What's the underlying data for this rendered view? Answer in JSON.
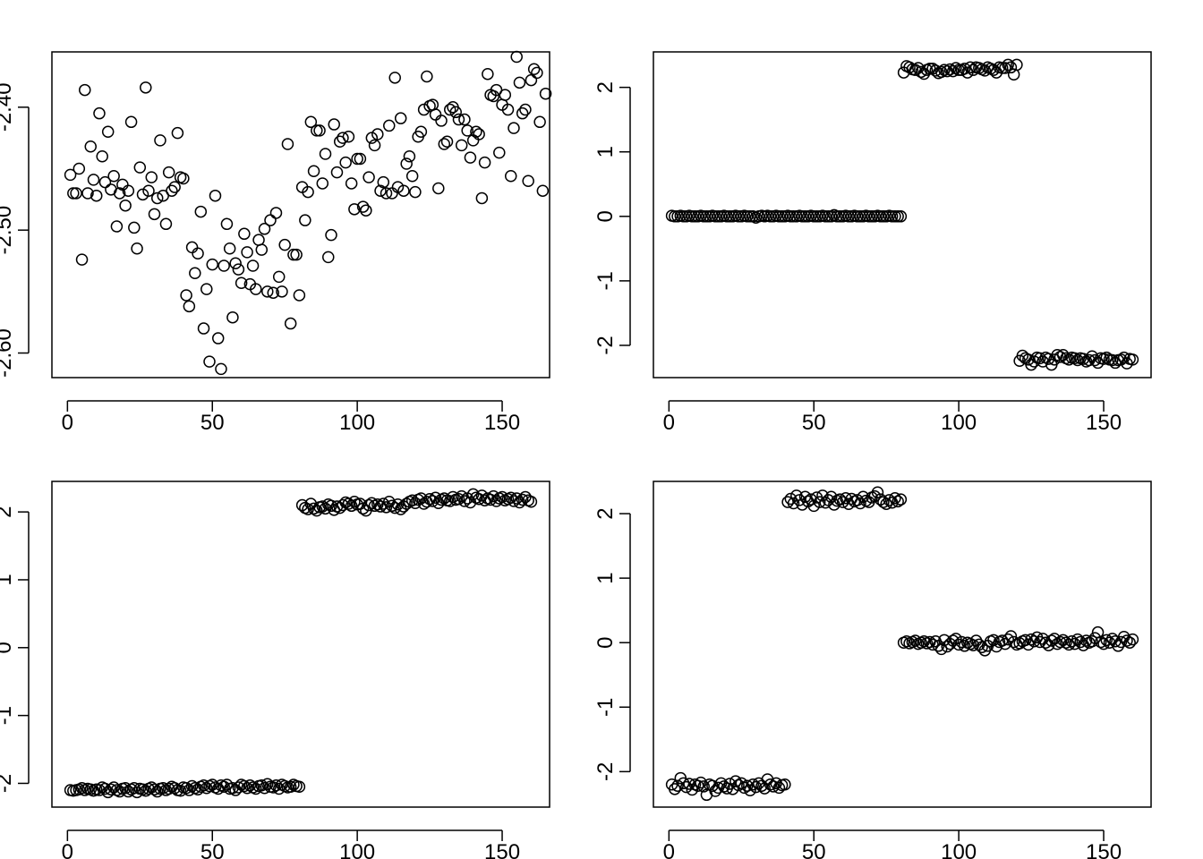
{
  "chart_data": [
    {
      "type": "scatter",
      "panel": "top-left",
      "title": "",
      "xlabel": "",
      "ylabel": "",
      "xlim": [
        1,
        160
      ],
      "ylim": [
        -2.62,
        -2.355
      ],
      "xticks": [
        0,
        50,
        100,
        150
      ],
      "xtick_labels": [
        "0",
        "50",
        "100",
        "150"
      ],
      "yticks": [
        -2.6,
        -2.5,
        -2.4
      ],
      "ytick_labels": [
        "-2.60",
        "-2.50",
        "-2.40"
      ],
      "x_start": 1,
      "y": [
        -2.455,
        -2.47,
        -2.47,
        -2.45,
        -2.524,
        -2.386,
        -2.47,
        -2.432,
        -2.459,
        -2.472,
        -2.405,
        -2.44,
        -2.461,
        -2.42,
        -2.467,
        -2.456,
        -2.497,
        -2.47,
        -2.463,
        -2.48,
        -2.468,
        -2.412,
        -2.498,
        -2.515,
        -2.449,
        -2.471,
        -2.384,
        -2.468,
        -2.457,
        -2.487,
        -2.474,
        -2.427,
        -2.472,
        -2.495,
        -2.453,
        -2.468,
        -2.465,
        -2.421,
        -2.457,
        -2.458,
        -2.553,
        -2.562,
        -2.514,
        -2.535,
        -2.519,
        -2.485,
        -2.58,
        -2.548,
        -2.607,
        -2.528,
        -2.472,
        -2.588,
        -2.613,
        -2.529,
        -2.495,
        -2.515,
        -2.571,
        -2.527,
        -2.532,
        -2.543,
        -2.503,
        -2.518,
        -2.544,
        -2.529,
        -2.548,
        -2.508,
        -2.516,
        -2.499,
        -2.55,
        -2.492,
        -2.551,
        -2.486,
        -2.538,
        -2.55,
        -2.512,
        -2.43,
        -2.576,
        -2.52,
        -2.52,
        -2.553,
        -2.465,
        -2.492,
        -2.469,
        -2.412,
        -2.452,
        -2.419,
        -2.419,
        -2.462,
        -2.438,
        -2.522,
        -2.504,
        -2.414,
        -2.453,
        -2.428,
        -2.425,
        -2.445,
        -2.424,
        -2.462,
        -2.483,
        -2.442,
        -2.442,
        -2.481,
        -2.484,
        -2.457,
        -2.425,
        -2.431,
        -2.422,
        -2.468,
        -2.461,
        -2.47,
        -2.415,
        -2.47,
        -2.376,
        -2.465,
        -2.409,
        -2.468,
        -2.446,
        -2.44,
        -2.456,
        -2.469,
        -2.424,
        -2.42,
        -2.402,
        -2.375,
        -2.399,
        -2.398,
        -2.406,
        -2.466,
        -2.411,
        -2.43,
        -2.428,
        -2.402,
        -2.4,
        -2.404,
        -2.41,
        -2.431,
        -2.41,
        -2.419,
        -2.441,
        -2.427,
        -2.42,
        -2.422,
        -2.474,
        -2.445,
        -2.373,
        -2.39,
        -2.391,
        -2.386,
        -2.437,
        -2.398,
        -2.39,
        -2.402,
        -2.456,
        -2.417,
        -2.359,
        -2.38,
        -2.405,
        -2.402,
        -2.46,
        -2.378,
        -2.369,
        -2.372,
        -2.412,
        -2.468,
        -2.389
      ]
    },
    {
      "type": "scatter",
      "panel": "top-right",
      "title": "",
      "xlabel": "",
      "ylabel": "",
      "xlim": [
        1,
        160
      ],
      "ylim": [
        -2.5,
        2.55
      ],
      "xticks": [
        0,
        50,
        100,
        150
      ],
      "xtick_labels": [
        "0",
        "50",
        "100",
        "150"
      ],
      "yticks": [
        -2,
        -1,
        0,
        1,
        2
      ],
      "ytick_labels": [
        "-2",
        "-1",
        "0",
        "1",
        "2"
      ],
      "x_start": 1,
      "y": [
        0.01,
        0.0,
        0.0,
        0.01,
        0.0,
        0.0,
        0.01,
        0.0,
        0.0,
        0.0,
        0.01,
        0.0,
        0.0,
        0.0,
        0.01,
        0.0,
        0.0,
        0.0,
        0.01,
        0.0,
        0.0,
        0.0,
        0.01,
        0.0,
        0.0,
        0.01,
        0.0,
        0.0,
        0.0,
        -0.02,
        0.0,
        0.01,
        0.0,
        0.01,
        0.0,
        0.0,
        0.01,
        0.0,
        0.0,
        0.0,
        0.01,
        0.0,
        0.0,
        0.0,
        0.01,
        0.0,
        0.0,
        0.0,
        0.01,
        0.0,
        0.0,
        0.0,
        0.01,
        0.0,
        0.0,
        0.0,
        0.02,
        0.0,
        0.0,
        0.0,
        0.01,
        0.0,
        0.0,
        0.01,
        0.0,
        0.0,
        0.0,
        0.01,
        0.0,
        0.0,
        0.0,
        0.01,
        0.0,
        0.0,
        0.0,
        0.01,
        0.0,
        0.0,
        0.0,
        0.0,
        2.23,
        2.33,
        2.31,
        2.28,
        2.27,
        2.3,
        2.24,
        2.21,
        2.27,
        2.29,
        2.29,
        2.26,
        2.22,
        2.24,
        2.27,
        2.25,
        2.28,
        2.25,
        2.3,
        2.27,
        2.27,
        2.29,
        2.23,
        2.31,
        2.27,
        2.31,
        2.3,
        2.28,
        2.26,
        2.31,
        2.29,
        2.27,
        2.23,
        2.31,
        2.3,
        2.3,
        2.35,
        2.31,
        2.2,
        2.35,
        -2.24,
        -2.16,
        -2.2,
        -2.22,
        -2.3,
        -2.25,
        -2.19,
        -2.2,
        -2.25,
        -2.19,
        -2.21,
        -2.3,
        -2.22,
        -2.15,
        -2.18,
        -2.15,
        -2.2,
        -2.22,
        -2.19,
        -2.2,
        -2.23,
        -2.2,
        -2.21,
        -2.25,
        -2.23,
        -2.17,
        -2.23,
        -2.27,
        -2.2,
        -2.21,
        -2.19,
        -2.22,
        -2.23,
        -2.27,
        -2.23,
        -2.22,
        -2.19,
        -2.28,
        -2.21,
        -2.22
      ]
    },
    {
      "type": "scatter",
      "panel": "bottom-left",
      "title": "",
      "xlabel": "",
      "ylabel": "",
      "xlim": [
        1,
        160
      ],
      "ylim": [
        -2.35,
        2.45
      ],
      "xticks": [
        0,
        50,
        100,
        150
      ],
      "xtick_labels": [
        "0",
        "50",
        "100",
        "150"
      ],
      "yticks": [
        -2,
        -1,
        0,
        1,
        2
      ],
      "ytick_labels": [
        "-2",
        "-1",
        "0",
        "1",
        "2"
      ],
      "x_start": 1,
      "y": [
        -2.1,
        -2.11,
        -2.1,
        -2.09,
        -2.07,
        -2.1,
        -2.08,
        -2.09,
        -2.11,
        -2.09,
        -2.1,
        -2.06,
        -2.08,
        -2.13,
        -2.09,
        -2.06,
        -2.1,
        -2.12,
        -2.08,
        -2.07,
        -2.12,
        -2.09,
        -2.07,
        -2.13,
        -2.08,
        -2.09,
        -2.11,
        -2.08,
        -2.06,
        -2.09,
        -2.12,
        -2.08,
        -2.07,
        -2.1,
        -2.08,
        -2.05,
        -2.07,
        -2.1,
        -2.11,
        -2.06,
        -2.07,
        -2.1,
        -2.04,
        -2.07,
        -2.09,
        -2.05,
        -2.03,
        -2.07,
        -2.04,
        -2.02,
        -2.06,
        -2.08,
        -2.03,
        -2.05,
        -2.02,
        -2.08,
        -2.07,
        -2.1,
        -2.06,
        -2.02,
        -2.04,
        -2.07,
        -2.03,
        -2.06,
        -2.08,
        -2.04,
        -2.03,
        -2.07,
        -2.01,
        -2.05,
        -2.06,
        -2.03,
        -2.08,
        -2.02,
        -2.04,
        -2.06,
        -2.05,
        -2.02,
        -2.04,
        -2.05,
        2.1,
        2.06,
        2.04,
        2.12,
        2.05,
        2.02,
        2.07,
        2.08,
        2.05,
        2.11,
        2.09,
        2.03,
        2.08,
        2.06,
        2.1,
        2.14,
        2.12,
        2.09,
        2.15,
        2.11,
        2.12,
        2.05,
        2.02,
        2.1,
        2.13,
        2.09,
        2.11,
        2.08,
        2.12,
        2.07,
        2.15,
        2.09,
        2.06,
        2.11,
        2.04,
        2.08,
        2.12,
        2.15,
        2.17,
        2.13,
        2.18,
        2.2,
        2.12,
        2.15,
        2.19,
        2.16,
        2.21,
        2.13,
        2.18,
        2.2,
        2.17,
        2.16,
        2.22,
        2.18,
        2.19,
        2.23,
        2.16,
        2.2,
        2.14,
        2.26,
        2.21,
        2.19,
        2.24,
        2.17,
        2.2,
        2.18,
        2.23,
        2.16,
        2.2,
        2.22,
        2.17,
        2.19,
        2.21,
        2.16,
        2.2,
        2.14,
        2.18,
        2.22,
        2.17,
        2.15
      ]
    },
    {
      "type": "scatter",
      "panel": "bottom-right",
      "title": "",
      "xlabel": "",
      "ylabel": "",
      "xlim": [
        1,
        160
      ],
      "ylim": [
        -2.55,
        2.5
      ],
      "xticks": [
        0,
        50,
        100,
        150
      ],
      "xtick_labels": [
        "0",
        "50",
        "100",
        "150"
      ],
      "yticks": [
        -2,
        -1,
        0,
        1,
        2
      ],
      "ytick_labels": [
        "-2",
        "-1",
        "0",
        "1",
        "2"
      ],
      "x_start": 1,
      "y": [
        -2.2,
        -2.27,
        -2.22,
        -2.1,
        -2.18,
        -2.24,
        -2.19,
        -2.28,
        -2.2,
        -2.22,
        -2.17,
        -2.23,
        -2.36,
        -2.2,
        -2.22,
        -2.3,
        -2.25,
        -2.18,
        -2.23,
        -2.26,
        -2.19,
        -2.27,
        -2.15,
        -2.21,
        -2.18,
        -2.25,
        -2.22,
        -2.29,
        -2.2,
        -2.24,
        -2.18,
        -2.22,
        -2.26,
        -2.12,
        -2.2,
        -2.23,
        -2.18,
        -2.25,
        -2.21,
        -2.2,
        2.18,
        2.23,
        2.16,
        2.28,
        2.21,
        2.14,
        2.26,
        2.19,
        2.22,
        2.12,
        2.25,
        2.18,
        2.28,
        2.17,
        2.21,
        2.26,
        2.14,
        2.2,
        2.22,
        2.18,
        2.24,
        2.15,
        2.23,
        2.19,
        2.21,
        2.16,
        2.26,
        2.2,
        2.18,
        2.25,
        2.27,
        2.33,
        2.22,
        2.18,
        2.15,
        2.21,
        2.17,
        2.24,
        2.19,
        2.22,
        0.0,
        0.02,
        -0.01,
        0.01,
        0.03,
        -0.02,
        0.0,
        0.02,
        -0.01,
        0.01,
        -0.03,
        0.02,
        -0.05,
        -0.1,
        0.04,
        -0.06,
        -0.02,
        0.03,
        0.06,
        -0.03,
        0.01,
        -0.05,
        0.0,
        -0.02,
        -0.04,
        0.03,
        -0.03,
        -0.07,
        -0.12,
        -0.05,
        0.02,
        0.04,
        -0.06,
        0.01,
        0.03,
        -0.02,
        0.05,
        0.1,
        0.01,
        -0.03,
        -0.01,
        0.02,
        0.04,
        -0.03,
        0.05,
        0.02,
        0.08,
        0.01,
        0.06,
        0.0,
        -0.04,
        0.03,
        0.06,
        -0.02,
        0.01,
        0.04,
        0.0,
        -0.03,
        0.02,
        -0.02,
        0.05,
        0.01,
        -0.04,
        0.03,
        0.0,
        0.02,
        0.07,
        0.16,
        0.01,
        -0.02,
        0.04,
        0.0,
        0.06,
        0.02,
        -0.05,
        0.01,
        0.09,
        0.03,
        0.0,
        0.05
      ]
    }
  ]
}
